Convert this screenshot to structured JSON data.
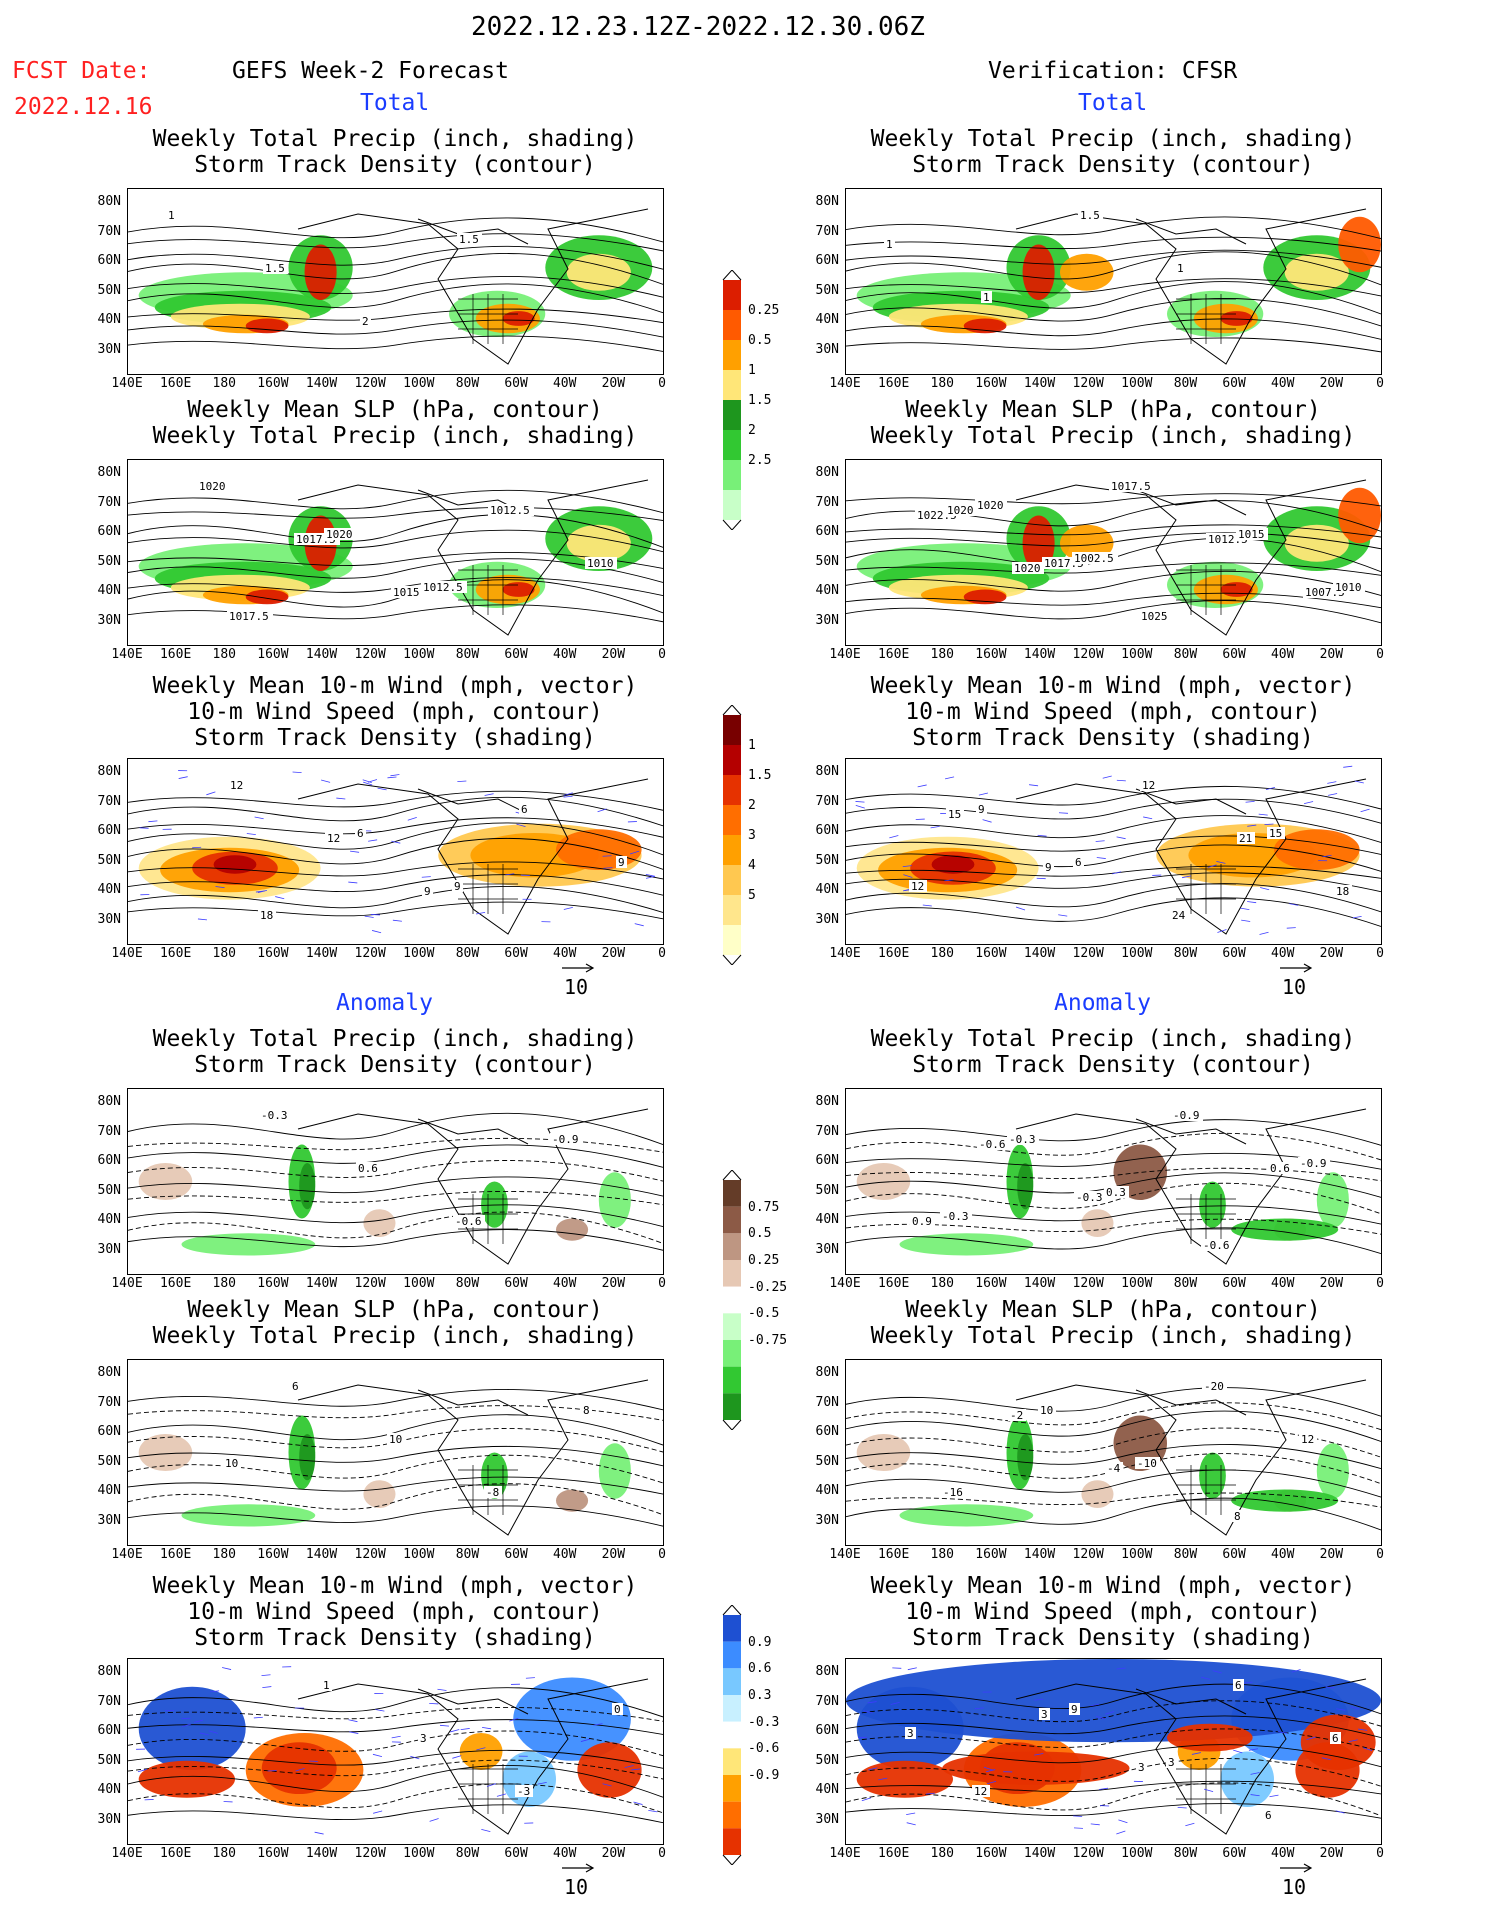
{
  "date_range": "2022.12.23.12Z-2022.12.30.06Z",
  "fcst_label": "FCST Date:",
  "fcst_date": "2022.12.16",
  "left_header": "GEFS Week-2 Forecast",
  "right_header": "Verification: CFSR",
  "section_total": "Total",
  "section_anomaly": "Anomaly",
  "titles": {
    "precip_storm": "Weekly Total Precip (inch, shading)\nStorm Track Density (contour)",
    "slp_precip": "Weekly Mean SLP (hPa, contour)\nWeekly Total Precip (inch, shading)",
    "wind_storm": "Weekly Mean 10-m Wind (mph, vector)\n10-m Wind Speed (mph, contour)\nStorm Track Density (shading)"
  },
  "lat_ticks": [
    "80N",
    "70N",
    "60N",
    "50N",
    "40N",
    "30N"
  ],
  "lon_ticks": [
    "140E",
    "160E",
    "180",
    "160W",
    "140W",
    "120W",
    "100W",
    "80W",
    "60W",
    "40W",
    "20W",
    "0"
  ],
  "vector_ref": "10",
  "colorbars": {
    "precip_total": {
      "values": [
        "0.25",
        "0.5",
        "1",
        "1.5",
        "2",
        "2.5"
      ],
      "colors": [
        "#c8ffc8",
        "#78f078",
        "#32c832",
        "#1e961e",
        "#ffe678",
        "#ffa000",
        "#ff5a00",
        "#dc1e00"
      ]
    },
    "storm_total": {
      "values": [
        "1",
        "1.5",
        "2",
        "3",
        "4",
        "5"
      ],
      "colors": [
        "#ffffc8",
        "#ffe68c",
        "#ffc850",
        "#ffa000",
        "#ff6e00",
        "#e63200",
        "#b40000",
        "#780000"
      ]
    },
    "precip_anom": {
      "values": [
        "0.75",
        "0.5",
        "0.25",
        "-0.25",
        "-0.5",
        "-0.75"
      ],
      "colors": [
        "#1e961e",
        "#32c832",
        "#78f078",
        "#c8ffc8",
        "#ffffff",
        "#e6c8b4",
        "#be9682",
        "#8c5a46",
        "#643c28"
      ]
    },
    "storm_anom": {
      "values": [
        "0.9",
        "0.6",
        "0.3",
        "-0.3",
        "-0.6",
        "-0.9"
      ],
      "colors": [
        "#e63200",
        "#ff6e00",
        "#ffa000",
        "#ffe678",
        "#ffffff",
        "#c8f0ff",
        "#78c8ff",
        "#3c8cff",
        "#1e50d2"
      ]
    }
  },
  "contour_labels": {
    "p1l": [
      "1",
      "1.5",
      "2",
      "1.5"
    ],
    "p1r": [
      "1",
      "1",
      "1.5",
      "1"
    ],
    "p2l": [
      "1020",
      "1017.5",
      "1015",
      "1012.5",
      "1010",
      "1017.5",
      "1020",
      "1012.5"
    ],
    "p2r": [
      "1022.5",
      "1020",
      "1017.5",
      "1012.5",
      "1007.5",
      "1020",
      "1017.5",
      "1025",
      "1015",
      "1010",
      "1020",
      "1002.5"
    ],
    "p3l": [
      "12",
      "12",
      "9",
      "6",
      "9",
      "18",
      "6",
      "9"
    ],
    "p3r": [
      "15",
      "9",
      "12",
      "21",
      "18",
      "9",
      "6",
      "24",
      "15",
      "12"
    ],
    "p4l": [
      "-0.3",
      "0.6",
      "-0.6",
      "-0.9"
    ],
    "p4r": [
      "-0.6",
      "-0.3",
      "-0.9",
      "0.6",
      "0.9",
      "-0.3",
      "0.3",
      "-0.6",
      "-0.9",
      "-0.3"
    ],
    "p5l": [
      "6",
      "10",
      "-8",
      "8",
      "10"
    ],
    "p5r": [
      "-2",
      "-4",
      "-20",
      "12",
      "-16",
      "10",
      "-10",
      "8"
    ],
    "p6l": [
      "1",
      "3",
      "-3",
      "0"
    ],
    "p6r": [
      "3",
      "3",
      "6",
      "6",
      "12",
      "9",
      "3",
      "6",
      "3"
    ]
  }
}
